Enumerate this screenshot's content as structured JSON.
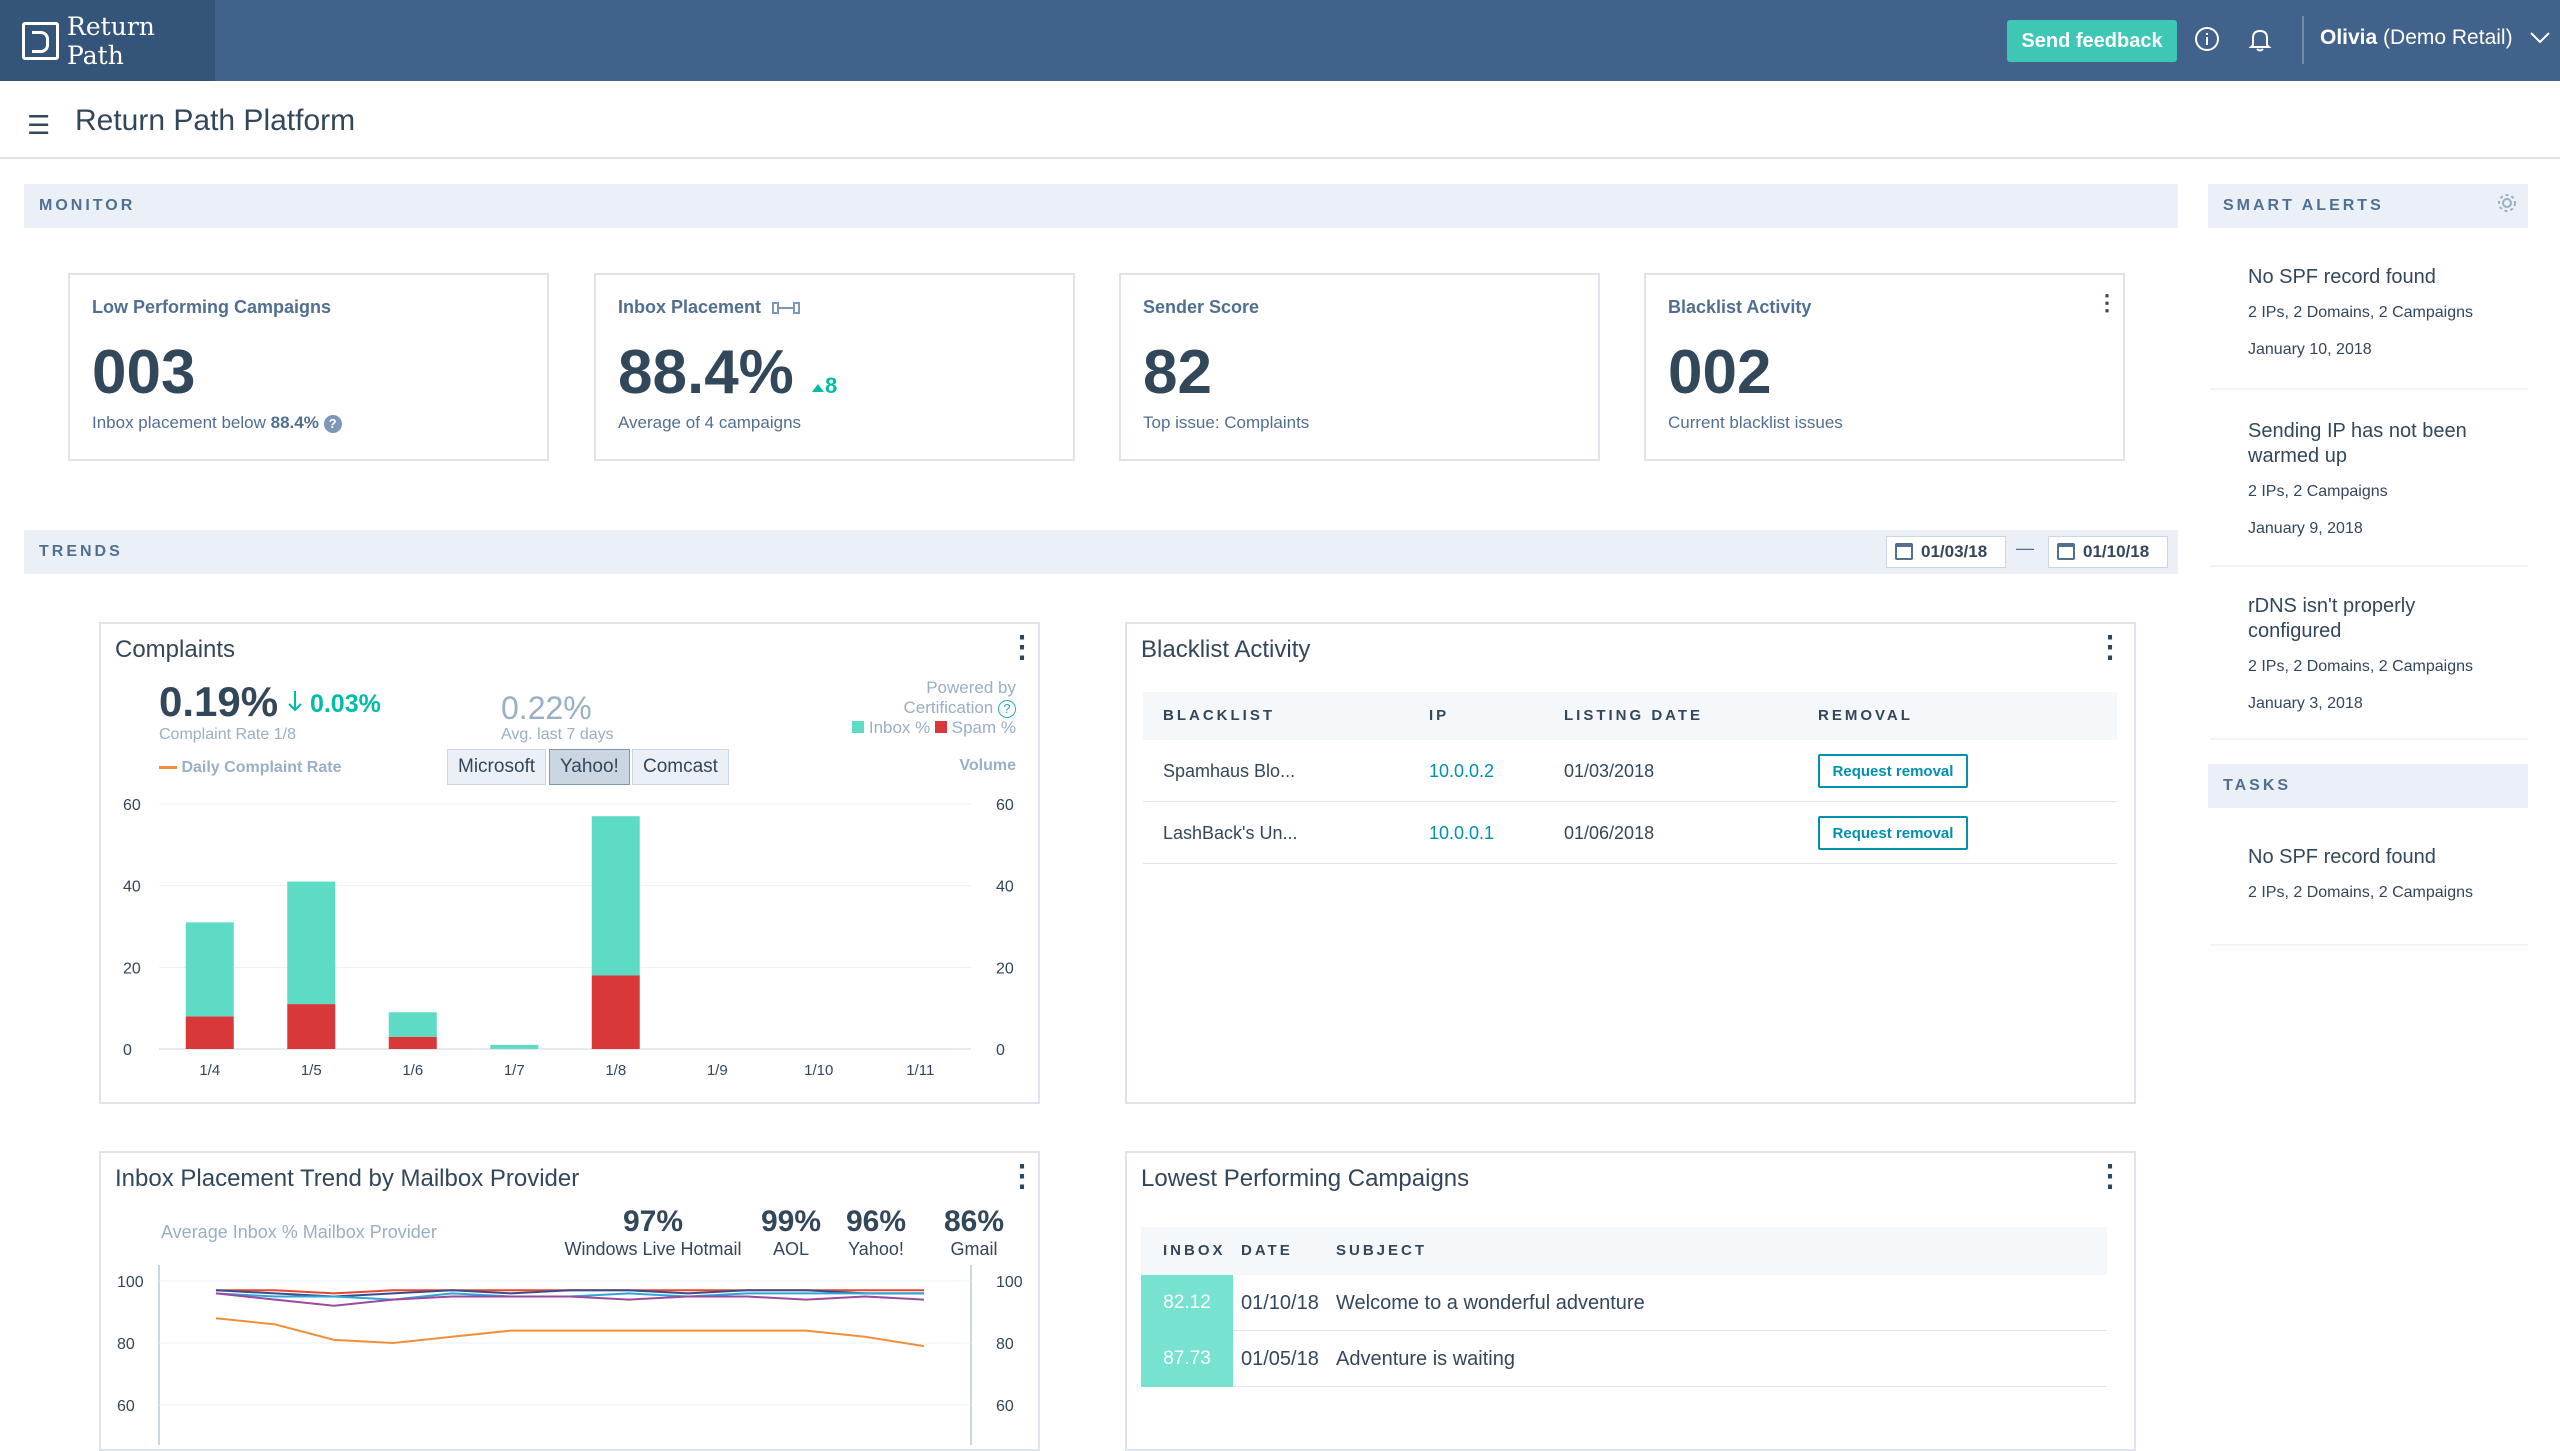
{
  "header": {
    "logo_text": "Return Path",
    "feedback_button": "Send feedback",
    "info_icon": "info-icon",
    "bell_icon": "bell-icon",
    "user_name": "Olivia",
    "user_account": "(Demo Retail)"
  },
  "subheader": {
    "title": "Return Path Platform"
  },
  "monitor": {
    "section_label": "MONITOR",
    "cards": [
      {
        "label": "Low Performing Campaigns",
        "value": "003",
        "sub": "Inbox placement below",
        "sub_bold": "88.4%"
      },
      {
        "label": "Inbox Placement",
        "value": "88.4%",
        "delta": "8",
        "sub": "Average of 4 campaigns"
      },
      {
        "label": "Sender Score",
        "value": "82",
        "sub": "Top issue: Complaints"
      },
      {
        "label": "Blacklist Activity",
        "value": "002",
        "sub": "Current blacklist issues"
      }
    ]
  },
  "trends": {
    "section_label": "TRENDS",
    "date_from": "01/03/18",
    "date_sep": "—",
    "date_to": "01/10/18"
  },
  "complaints": {
    "title": "Complaints",
    "rate": "0.19%",
    "delta": "0.03%",
    "rate_label": "Complaint Rate 1/8",
    "avg": "0.22%",
    "avg_label": "Avg. last 7 days",
    "powered_line1": "Powered by",
    "powered_line2": "Certification",
    "legend_inbox": "Inbox %",
    "legend_spam": "Spam %",
    "legend_daily": "Daily Complaint Rate",
    "volume_label": "Volume",
    "tabs": [
      "Microsoft",
      "Yahoo!",
      "Comcast"
    ],
    "selected_tab": "Yahoo!"
  },
  "chart_data": [
    {
      "type": "bar",
      "categories": [
        "1/4",
        "1/5",
        "1/6",
        "1/7",
        "1/8",
        "1/9",
        "1/10",
        "1/11"
      ],
      "series": [
        {
          "name": "Spam %",
          "values": [
            8,
            11,
            3,
            0,
            18,
            0,
            0,
            0
          ]
        },
        {
          "name": "Inbox %",
          "values": [
            23,
            30,
            6,
            1,
            39,
            0,
            0,
            0
          ]
        }
      ],
      "stacked": true,
      "ylim": [
        0,
        60
      ],
      "yticks": [
        0,
        20,
        40,
        60
      ],
      "y2label": "Volume",
      "colors": {
        "Inbox %": "#5ddbc4",
        "Spam %": "#d9383b"
      }
    },
    {
      "type": "line",
      "ylim": [
        60,
        100
      ],
      "yticks": [
        60,
        80,
        100
      ],
      "x": [
        0,
        1,
        2,
        3,
        4,
        5,
        6,
        7,
        8,
        9,
        10,
        11,
        12
      ],
      "series": [
        {
          "color": "#e8462f",
          "values": [
            97,
            97,
            96,
            97,
            97,
            97,
            97,
            97,
            97,
            97,
            97,
            97,
            97
          ]
        },
        {
          "color": "#3a4c8a",
          "values": [
            97,
            96,
            95,
            96,
            97,
            96,
            97,
            97,
            96,
            97,
            97,
            96,
            96
          ]
        },
        {
          "color": "#2ea6d8",
          "values": [
            96,
            95,
            95,
            94,
            96,
            95,
            95,
            96,
            95,
            96,
            96,
            96,
            96
          ]
        },
        {
          "color": "#9b4a9f",
          "values": [
            96,
            94,
            92,
            94,
            95,
            95,
            95,
            94,
            95,
            95,
            94,
            95,
            94
          ]
        },
        {
          "color": "#f08f3a",
          "values": [
            88,
            86,
            81,
            80,
            82,
            84,
            84,
            84,
            84,
            84,
            84,
            82,
            79
          ]
        }
      ]
    }
  ],
  "inbox_trend": {
    "title": "Inbox Placement Trend by Mailbox Provider",
    "avg_label": "Average Inbox % Mailbox Provider",
    "providers": [
      {
        "value": "97%",
        "name": "Windows Live Hotmail"
      },
      {
        "value": "99%",
        "name": "AOL"
      },
      {
        "value": "96%",
        "name": "Yahoo!"
      },
      {
        "value": "86%",
        "name": "Gmail"
      }
    ]
  },
  "blacklist": {
    "title": "Blacklist Activity",
    "headers": [
      "BLACKLIST",
      "IP",
      "LISTING DATE",
      "REMOVAL"
    ],
    "rows": [
      {
        "name": "Spamhaus Blo...",
        "ip": "10.0.0.2",
        "date": "01/03/2018",
        "action": "Request removal"
      },
      {
        "name": "LashBack's Un...",
        "ip": "10.0.0.1",
        "date": "01/06/2018",
        "action": "Request removal"
      }
    ]
  },
  "lowest": {
    "title": "Lowest Performing Campaigns",
    "headers": [
      "INBOX",
      "DATE",
      "SUBJECT"
    ],
    "rows": [
      {
        "inbox": "82.12",
        "date": "01/10/18",
        "subject": "Welcome to a wonderful adventure"
      },
      {
        "inbox": "87.73",
        "date": "01/05/18",
        "subject": "Adventure is waiting"
      }
    ]
  },
  "smart_alerts": {
    "label": "SMART ALERTS",
    "items": [
      {
        "title": "No SPF record found",
        "meta": "2 IPs, 2 Domains, 2 Campaigns",
        "date": "January 10, 2018"
      },
      {
        "title": "Sending IP has not been warmed up",
        "meta": "2 IPs, 2 Campaigns",
        "date": "January 9, 2018"
      },
      {
        "title": "rDNS isn't properly configured",
        "meta": "2 IPs, 2 Domains, 2 Campaigns",
        "date": "January 3, 2018"
      }
    ]
  },
  "tasks": {
    "label": "TASKS",
    "items": [
      {
        "title": "No SPF record found",
        "meta": "2 IPs, 2 Domains, 2 Campaigns"
      }
    ]
  }
}
